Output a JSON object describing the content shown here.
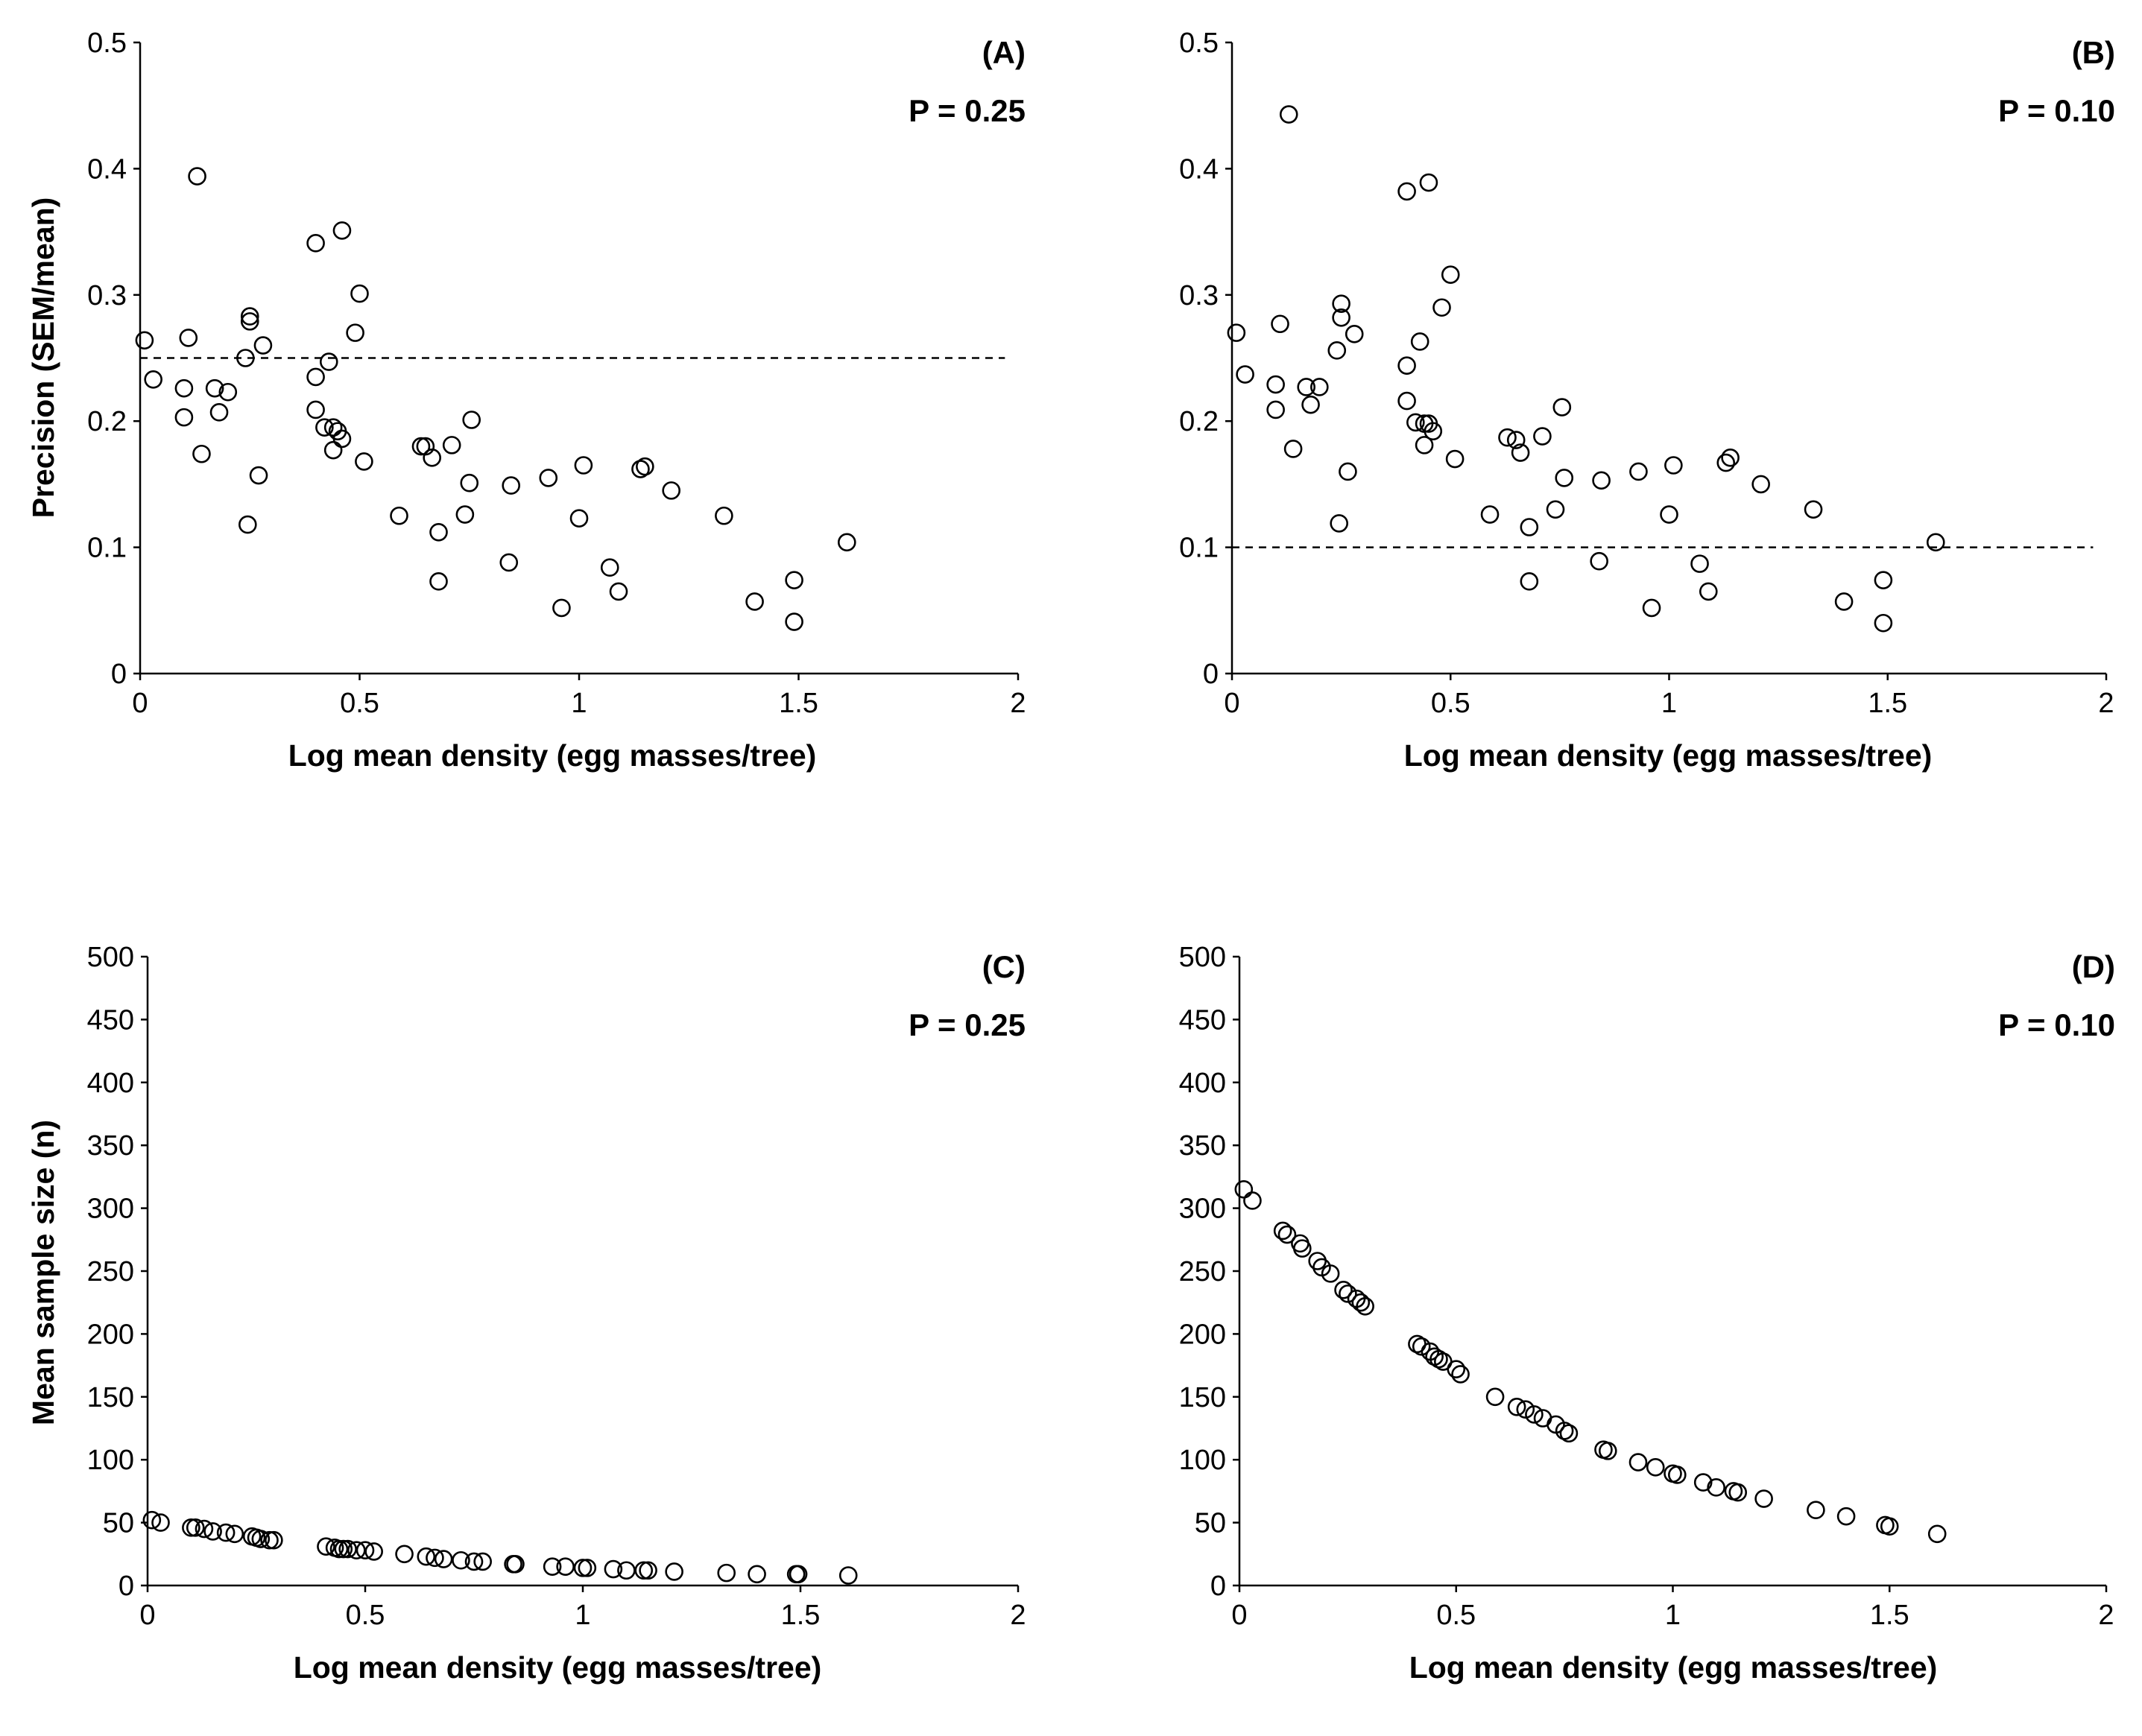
{
  "chart_data": [
    {
      "type": "scatter",
      "panel": "(A)",
      "annotation": "P = 0.25",
      "xlabel": "Log mean density (egg masses/tree)",
      "ylabel": "Precision (SEM/mean)",
      "xlim": [
        0,
        2
      ],
      "ylim": [
        0,
        0.5
      ],
      "xticks": [
        "0",
        "0.5",
        "1",
        "1.5",
        "2"
      ],
      "yticks": [
        "0",
        "0.1",
        "0.2",
        "0.3",
        "0.4",
        "0.5"
      ],
      "reference_line": {
        "y": 0.25,
        "style": "dashed"
      },
      "points": [
        [
          0.01,
          0.264
        ],
        [
          0.03,
          0.233
        ],
        [
          0.1,
          0.226
        ],
        [
          0.1,
          0.203
        ],
        [
          0.11,
          0.266
        ],
        [
          0.13,
          0.394
        ],
        [
          0.14,
          0.174
        ],
        [
          0.17,
          0.226
        ],
        [
          0.18,
          0.207
        ],
        [
          0.2,
          0.223
        ],
        [
          0.24,
          0.25
        ],
        [
          0.245,
          0.118
        ],
        [
          0.25,
          0.283
        ],
        [
          0.25,
          0.279
        ],
        [
          0.27,
          0.157
        ],
        [
          0.28,
          0.26
        ],
        [
          0.4,
          0.341
        ],
        [
          0.4,
          0.235
        ],
        [
          0.4,
          0.209
        ],
        [
          0.42,
          0.195
        ],
        [
          0.43,
          0.247
        ],
        [
          0.44,
          0.195
        ],
        [
          0.44,
          0.177
        ],
        [
          0.45,
          0.192
        ],
        [
          0.46,
          0.186
        ],
        [
          0.46,
          0.351
        ],
        [
          0.49,
          0.27
        ],
        [
          0.5,
          0.301
        ],
        [
          0.51,
          0.168
        ],
        [
          0.59,
          0.125
        ],
        [
          0.64,
          0.18
        ],
        [
          0.65,
          0.18
        ],
        [
          0.665,
          0.171
        ],
        [
          0.68,
          0.112
        ],
        [
          0.68,
          0.073
        ],
        [
          0.71,
          0.181
        ],
        [
          0.74,
          0.126
        ],
        [
          0.75,
          0.151
        ],
        [
          0.755,
          0.201
        ],
        [
          0.84,
          0.088
        ],
        [
          0.845,
          0.149
        ],
        [
          0.93,
          0.155
        ],
        [
          0.96,
          0.052
        ],
        [
          1.0,
          0.123
        ],
        [
          1.01,
          0.165
        ],
        [
          1.07,
          0.084
        ],
        [
          1.09,
          0.065
        ],
        [
          1.14,
          0.162
        ],
        [
          1.15,
          0.164
        ],
        [
          1.21,
          0.145
        ],
        [
          1.33,
          0.125
        ],
        [
          1.4,
          0.057
        ],
        [
          1.49,
          0.074
        ],
        [
          1.49,
          0.041
        ],
        [
          1.61,
          0.104
        ]
      ]
    },
    {
      "type": "scatter",
      "panel": "(B)",
      "annotation": "P = 0.10",
      "xlabel": "Log mean density (egg masses/tree)",
      "ylabel": "",
      "xlim": [
        0,
        2
      ],
      "ylim": [
        0,
        0.5
      ],
      "xticks": [
        "0",
        "0.5",
        "1",
        "1.5",
        "2"
      ],
      "yticks": [
        "0",
        "0.1",
        "0.2",
        "0.3",
        "0.4",
        "0.5"
      ],
      "reference_line": {
        "y": 0.1,
        "style": "dashed"
      },
      "points": [
        [
          0.01,
          0.27
        ],
        [
          0.03,
          0.237
        ],
        [
          0.1,
          0.229
        ],
        [
          0.1,
          0.209
        ],
        [
          0.11,
          0.277
        ],
        [
          0.13,
          0.443
        ],
        [
          0.14,
          0.178
        ],
        [
          0.17,
          0.227
        ],
        [
          0.18,
          0.213
        ],
        [
          0.2,
          0.227
        ],
        [
          0.24,
          0.256
        ],
        [
          0.245,
          0.119
        ],
        [
          0.25,
          0.293
        ],
        [
          0.25,
          0.282
        ],
        [
          0.265,
          0.16
        ],
        [
          0.28,
          0.269
        ],
        [
          0.4,
          0.382
        ],
        [
          0.4,
          0.244
        ],
        [
          0.4,
          0.216
        ],
        [
          0.42,
          0.199
        ],
        [
          0.43,
          0.263
        ],
        [
          0.44,
          0.198
        ],
        [
          0.44,
          0.181
        ],
        [
          0.45,
          0.389
        ],
        [
          0.45,
          0.198
        ],
        [
          0.46,
          0.192
        ],
        [
          0.48,
          0.29
        ],
        [
          0.5,
          0.316
        ],
        [
          0.51,
          0.17
        ],
        [
          0.59,
          0.126
        ],
        [
          0.63,
          0.187
        ],
        [
          0.65,
          0.185
        ],
        [
          0.66,
          0.175
        ],
        [
          0.68,
          0.116
        ],
        [
          0.68,
          0.073
        ],
        [
          0.71,
          0.188
        ],
        [
          0.74,
          0.13
        ],
        [
          0.755,
          0.211
        ],
        [
          0.76,
          0.155
        ],
        [
          0.84,
          0.089
        ],
        [
          0.845,
          0.153
        ],
        [
          0.93,
          0.16
        ],
        [
          0.96,
          0.052
        ],
        [
          1.0,
          0.126
        ],
        [
          1.01,
          0.165
        ],
        [
          1.07,
          0.087
        ],
        [
          1.09,
          0.065
        ],
        [
          1.13,
          0.167
        ],
        [
          1.14,
          0.171
        ],
        [
          1.21,
          0.15
        ],
        [
          1.33,
          0.13
        ],
        [
          1.4,
          0.057
        ],
        [
          1.49,
          0.074
        ],
        [
          1.49,
          0.04
        ],
        [
          1.61,
          0.104
        ]
      ]
    },
    {
      "type": "scatter",
      "panel": "(C)",
      "annotation": "P = 0.25",
      "xlabel": "Log mean density (egg masses/tree)",
      "ylabel": "Mean sample size (n)",
      "xlim": [
        0,
        2
      ],
      "ylim": [
        0,
        500
      ],
      "xticks": [
        "0",
        "0.5",
        "1",
        "1.5",
        "2"
      ],
      "yticks": [
        "0",
        "50",
        "100",
        "150",
        "200",
        "250",
        "300",
        "350",
        "400",
        "450",
        "500"
      ],
      "points": [
        [
          0.01,
          52
        ],
        [
          0.03,
          50
        ],
        [
          0.1,
          46
        ],
        [
          0.11,
          46
        ],
        [
          0.13,
          45
        ],
        [
          0.15,
          43
        ],
        [
          0.18,
          42
        ],
        [
          0.2,
          41
        ],
        [
          0.24,
          39
        ],
        [
          0.25,
          38
        ],
        [
          0.26,
          37
        ],
        [
          0.28,
          36
        ],
        [
          0.29,
          36
        ],
        [
          0.41,
          31
        ],
        [
          0.43,
          30
        ],
        [
          0.44,
          29
        ],
        [
          0.45,
          29
        ],
        [
          0.46,
          29
        ],
        [
          0.48,
          28
        ],
        [
          0.5,
          28
        ],
        [
          0.52,
          27
        ],
        [
          0.59,
          25
        ],
        [
          0.64,
          23
        ],
        [
          0.66,
          22
        ],
        [
          0.68,
          21
        ],
        [
          0.72,
          20
        ],
        [
          0.75,
          19
        ],
        [
          0.77,
          19
        ],
        [
          0.84,
          17
        ],
        [
          0.845,
          17
        ],
        [
          0.93,
          15
        ],
        [
          0.96,
          15
        ],
        [
          1.0,
          14
        ],
        [
          1.01,
          14
        ],
        [
          1.07,
          13
        ],
        [
          1.1,
          12
        ],
        [
          1.14,
          12
        ],
        [
          1.15,
          12
        ],
        [
          1.21,
          11
        ],
        [
          1.33,
          10
        ],
        [
          1.4,
          9
        ],
        [
          1.49,
          9
        ],
        [
          1.495,
          9
        ],
        [
          1.61,
          8
        ]
      ]
    },
    {
      "type": "scatter",
      "panel": "(D)",
      "annotation": "P = 0.10",
      "xlabel": "Log mean density (egg masses/tree)",
      "ylabel": "",
      "xlim": [
        0,
        2
      ],
      "ylim": [
        0,
        500
      ],
      "xticks": [
        "0",
        "0.5",
        "1",
        "1.5",
        "2"
      ],
      "yticks": [
        "0",
        "50",
        "100",
        "150",
        "200",
        "250",
        "300",
        "350",
        "400",
        "450",
        "500"
      ],
      "points": [
        [
          0.01,
          315
        ],
        [
          0.03,
          306
        ],
        [
          0.1,
          282
        ],
        [
          0.11,
          279
        ],
        [
          0.14,
          272
        ],
        [
          0.145,
          268
        ],
        [
          0.18,
          258
        ],
        [
          0.19,
          253
        ],
        [
          0.21,
          248
        ],
        [
          0.24,
          235
        ],
        [
          0.25,
          232
        ],
        [
          0.27,
          228
        ],
        [
          0.28,
          225
        ],
        [
          0.29,
          222
        ],
        [
          0.41,
          192
        ],
        [
          0.42,
          190
        ],
        [
          0.44,
          186
        ],
        [
          0.45,
          182
        ],
        [
          0.46,
          180
        ],
        [
          0.47,
          178
        ],
        [
          0.5,
          172
        ],
        [
          0.51,
          168
        ],
        [
          0.59,
          150
        ],
        [
          0.64,
          142
        ],
        [
          0.66,
          140
        ],
        [
          0.68,
          136
        ],
        [
          0.7,
          133
        ],
        [
          0.73,
          128
        ],
        [
          0.75,
          123
        ],
        [
          0.76,
          121
        ],
        [
          0.84,
          108
        ],
        [
          0.85,
          107
        ],
        [
          0.92,
          98
        ],
        [
          0.96,
          94
        ],
        [
          1.0,
          89
        ],
        [
          1.01,
          88
        ],
        [
          1.07,
          82
        ],
        [
          1.1,
          78
        ],
        [
          1.14,
          75
        ],
        [
          1.15,
          74
        ],
        [
          1.21,
          69
        ],
        [
          1.33,
          60
        ],
        [
          1.4,
          55
        ],
        [
          1.49,
          48
        ],
        [
          1.5,
          47
        ],
        [
          1.61,
          41
        ]
      ]
    }
  ]
}
